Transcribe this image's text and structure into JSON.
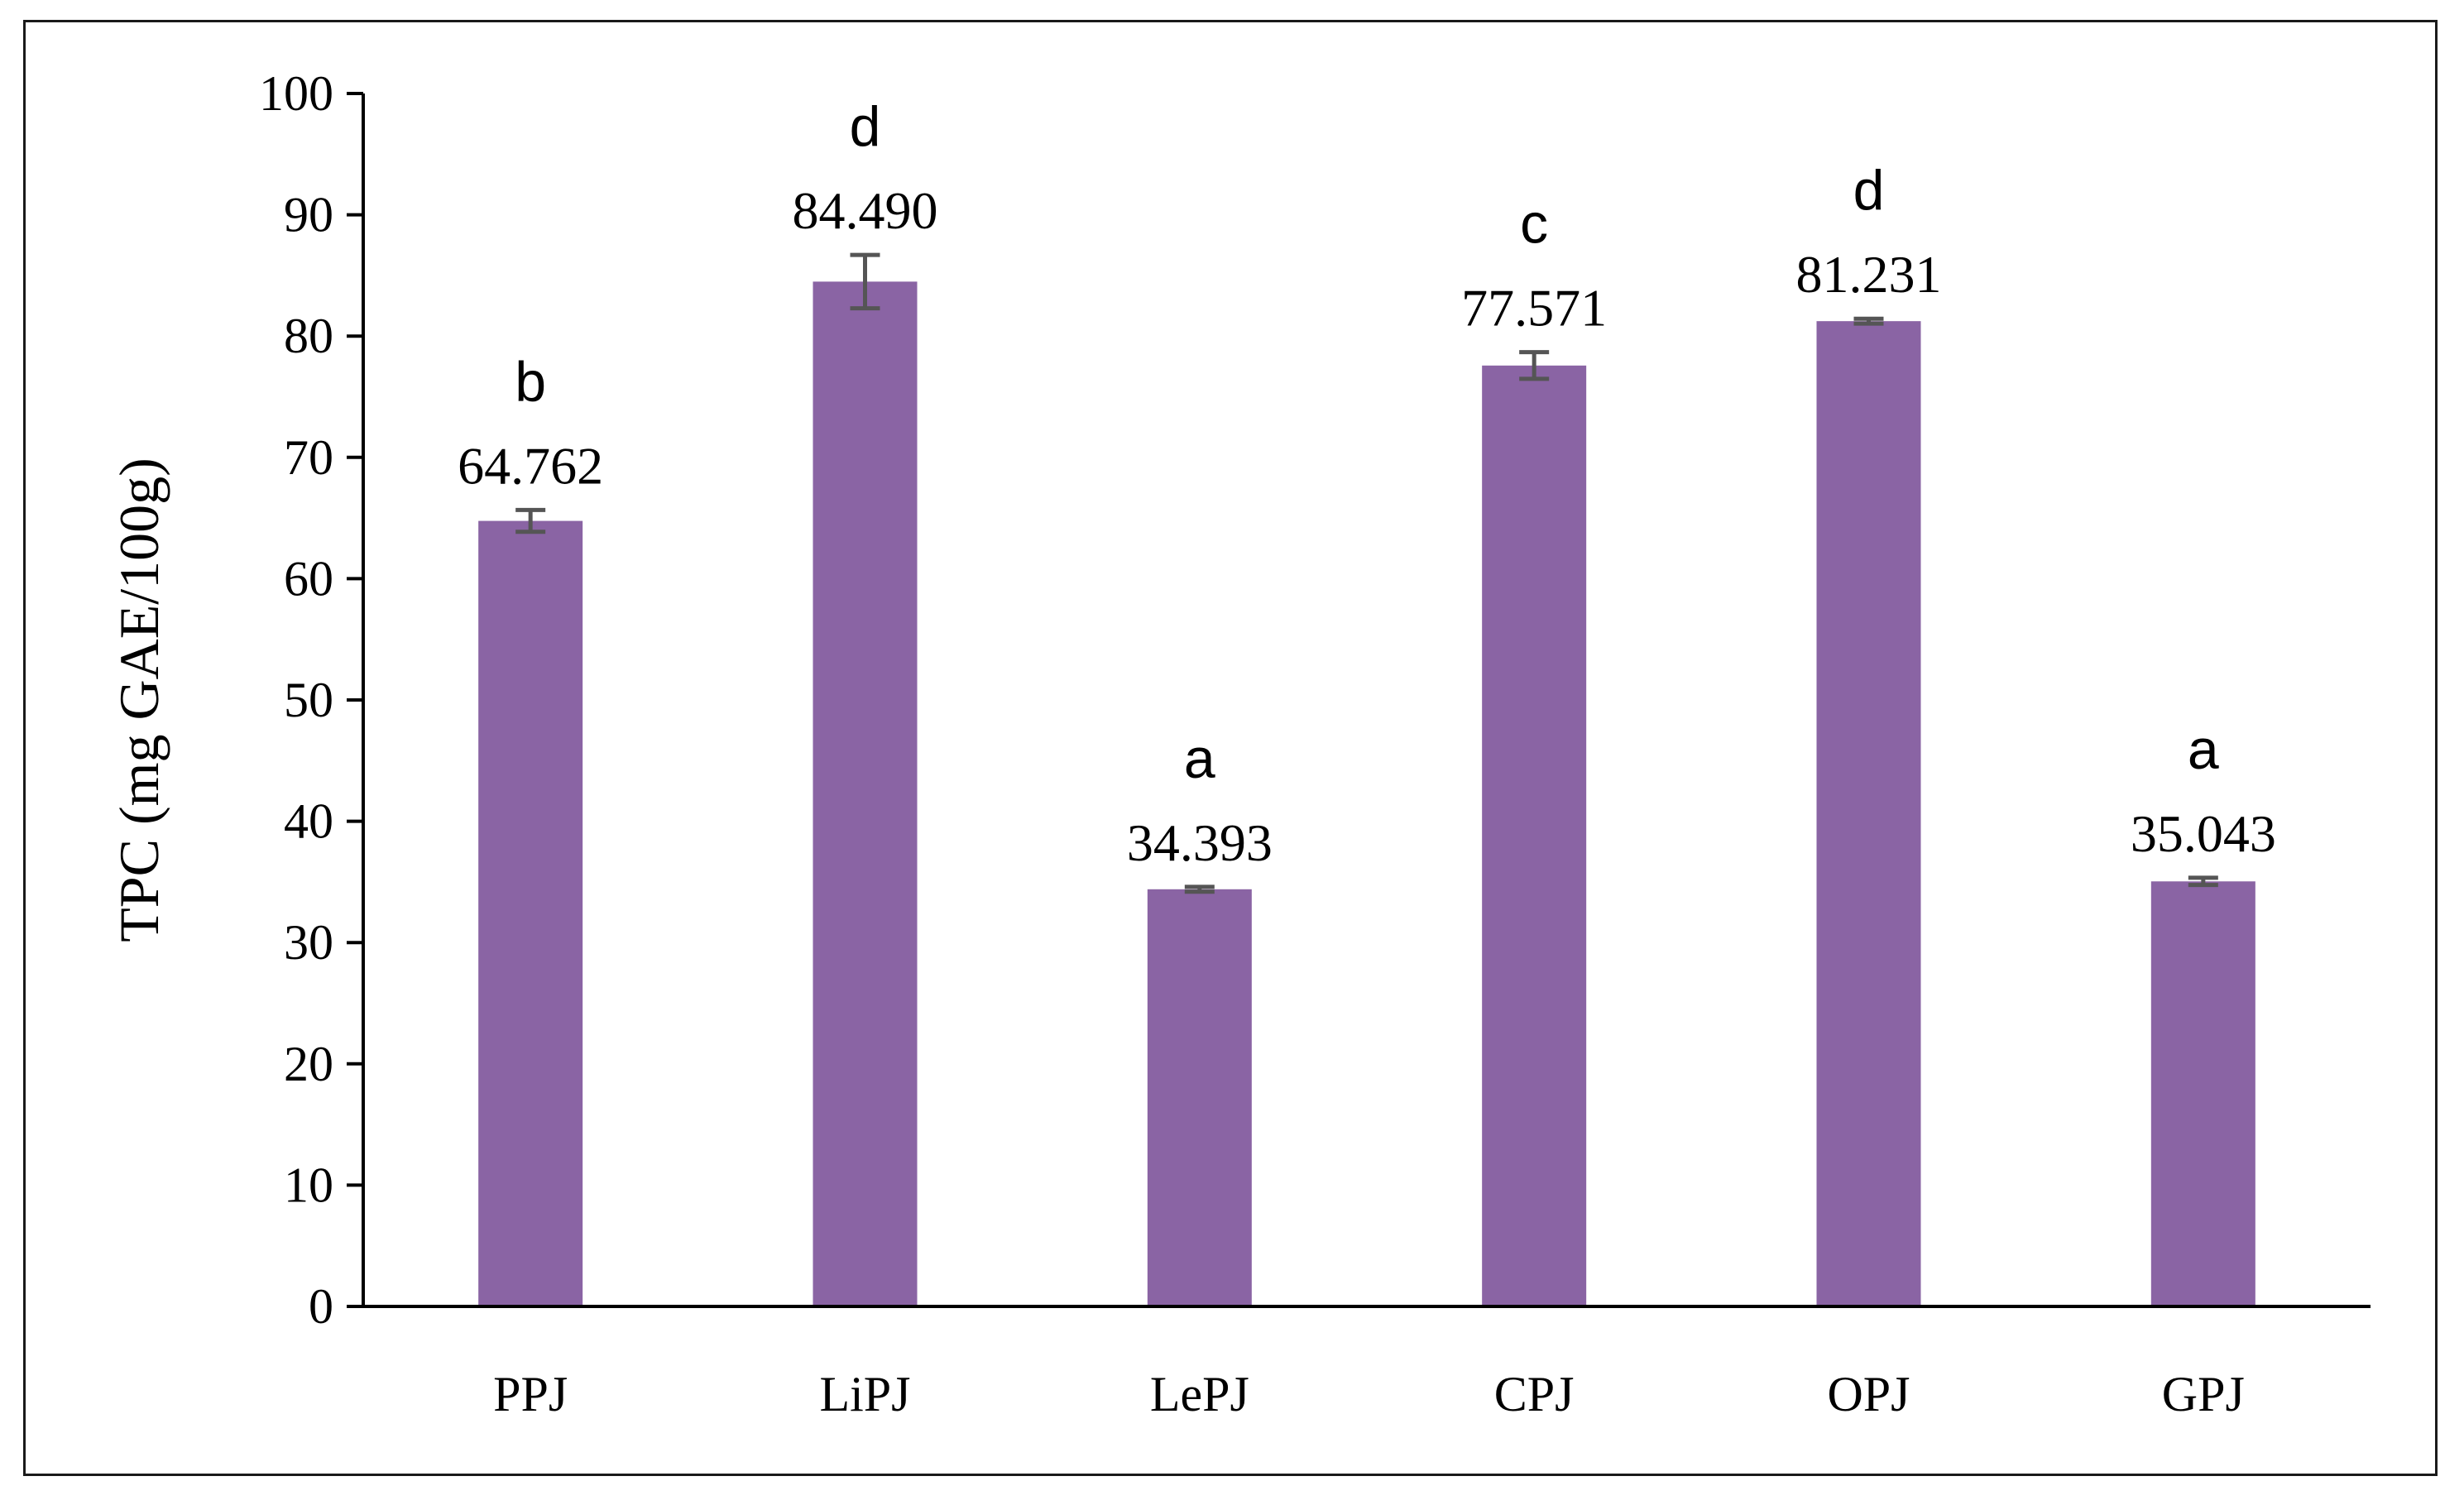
{
  "chart_data": {
    "type": "bar",
    "title": "",
    "xlabel": "",
    "ylabel": "TPC (mg GAE/100g)",
    "ylim": [
      0,
      100
    ],
    "yticks": [
      0,
      10,
      20,
      30,
      40,
      50,
      60,
      70,
      80,
      90,
      100
    ],
    "grid": false,
    "categories": [
      "PPJ",
      "LiPJ",
      "LePJ",
      "CPJ",
      "OPJ",
      "GPJ"
    ],
    "values": [
      64.762,
      84.49,
      34.393,
      77.571,
      81.231,
      35.043
    ],
    "value_labels": [
      "64.762",
      "84.490",
      "34.393",
      "77.571",
      "81.231",
      "35.043"
    ],
    "error": [
      0.9,
      2.2,
      0.2,
      1.1,
      0.2,
      0.3
    ],
    "significance_letters": [
      "b",
      "d",
      "a",
      "c",
      "d",
      "a"
    ],
    "colors": {
      "bar": "#8a64a4",
      "error_bar": "#555555",
      "axis": "#000000"
    }
  }
}
